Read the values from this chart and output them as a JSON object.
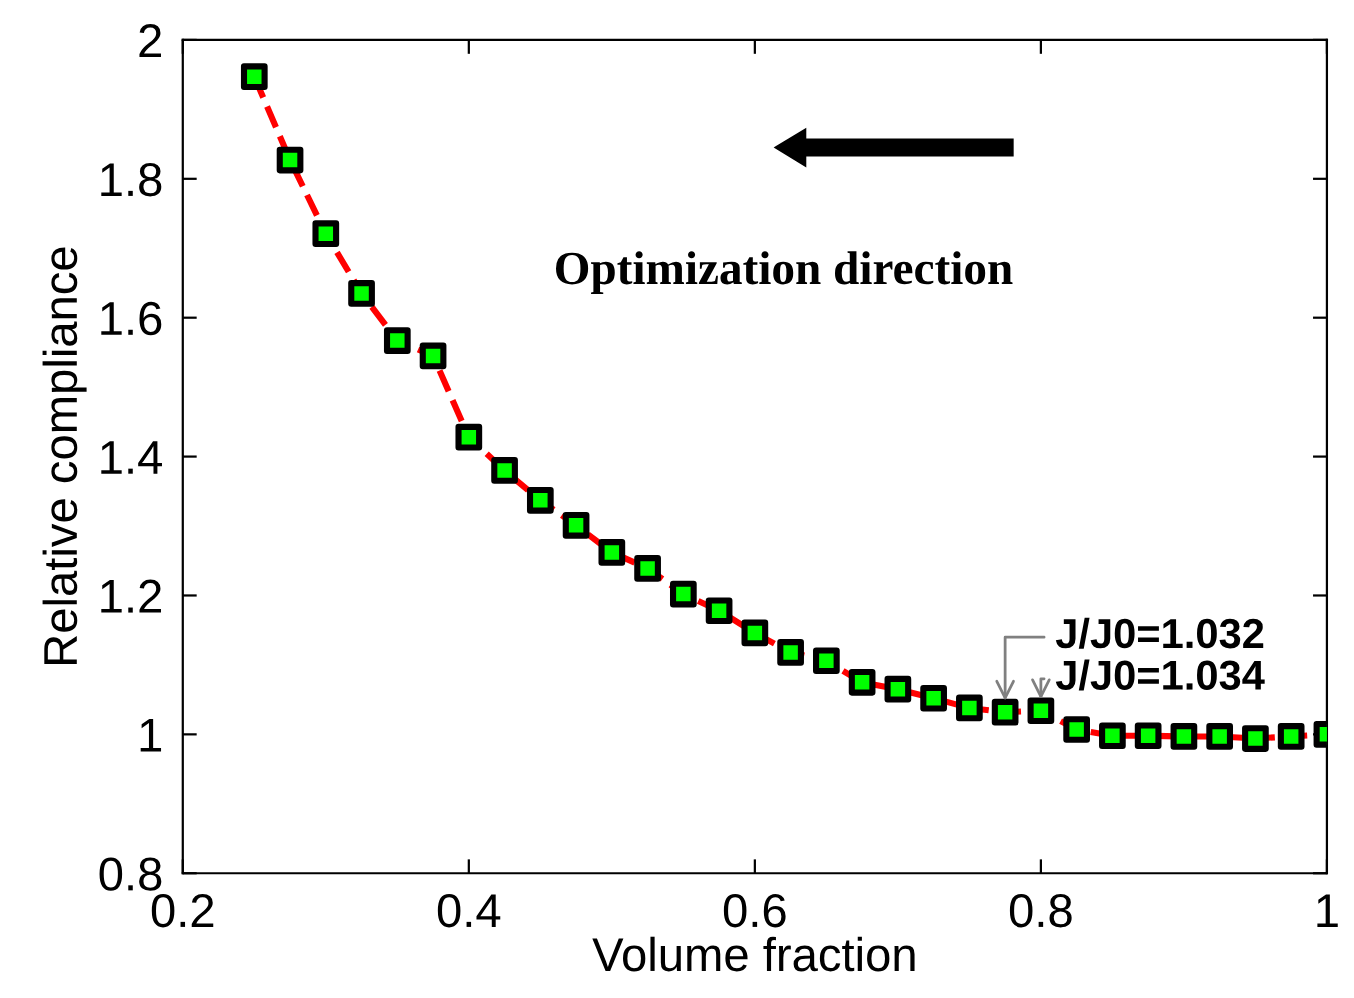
{
  "chart_data": {
    "type": "line",
    "xlabel": "Volume fraction",
    "ylabel": "Relative compliance",
    "x": [
      0.25,
      0.275,
      0.3,
      0.325,
      0.35,
      0.375,
      0.4,
      0.425,
      0.45,
      0.475,
      0.5,
      0.525,
      0.55,
      0.575,
      0.6,
      0.625,
      0.65,
      0.675,
      0.7,
      0.725,
      0.75,
      0.775,
      0.8,
      0.825,
      0.85,
      0.875,
      0.9,
      0.925,
      0.95,
      0.975,
      1.0
    ],
    "series": [
      {
        "color": "#ff0000",
        "line_style": "dashed",
        "marker": "square",
        "colors": [
          "#00ff00",
          "#00ff00",
          "#00ff00",
          "#00ff00",
          "#00ff00",
          "#00ff00",
          "#00ff00",
          "#00ff00",
          "#00ff00",
          "#00ff00",
          "#00ff00",
          "#00ff00",
          "#00ff00",
          "#00ff00",
          "#00ff00",
          "#00ff00",
          "#00ff00",
          "#00ff00",
          "#00ff00",
          "#00ff00",
          "#00ff00",
          "#00ff00",
          "#00ff00",
          "#00ff00",
          "#00ff00",
          "#00ff00",
          "#00ff00",
          "#00ff00",
          "#00ff00",
          "#00ff00",
          "#00ff00"
        ],
        "values": [
          1.947,
          1.827,
          1.721,
          1.635,
          1.567,
          1.545,
          1.428,
          1.38,
          1.337,
          1.301,
          1.262,
          1.239,
          1.202,
          1.178,
          1.146,
          1.118,
          1.106,
          1.075,
          1.065,
          1.052,
          1.038,
          1.032,
          1.034,
          1.007,
          0.998,
          0.998,
          0.997,
          0.997,
          0.994,
          0.997,
          1.0
        ]
      }
    ],
    "xlim": [
      0.2,
      1.0
    ],
    "xticks": [
      0.2,
      0.4,
      0.6,
      0.8,
      {
        "value": 1.0,
        "label": "1"
      }
    ],
    "ylim": [
      0.8,
      2.0
    ],
    "yticks": [
      0.8,
      {
        "value": 1.0,
        "label": "1"
      },
      1.2,
      1.4,
      1.6,
      1.8,
      {
        "value": 2.0,
        "label": "2"
      }
    ],
    "grid": false,
    "legend": false,
    "annotations": [
      "Optimization direction",
      {
        "text": "J/J0=1.032",
        "x": 0.775,
        "y": 1.032
      },
      {
        "text": "J/J0=1.034",
        "x": 0.8,
        "y": 1.034
      }
    ]
  }
}
